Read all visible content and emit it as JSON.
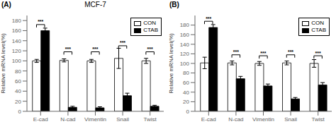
{
  "chart_data": [
    {
      "type": "bar",
      "title": "MCF-7",
      "ylabel": "Relative mRNA level(%)",
      "categories": [
        "E-cad",
        "N-cad",
        "Vimentin",
        "Snail",
        "Twist"
      ],
      "series": [
        {
          "name": "CON",
          "color": "white",
          "values": [
            100,
            101,
            100,
            105,
            100
          ],
          "errors": [
            3,
            3,
            3,
            20,
            5
          ]
        },
        {
          "name": "CTAB",
          "color": "black",
          "values": [
            160,
            8,
            7,
            31,
            10
          ],
          "errors": [
            5,
            2,
            2,
            5,
            2
          ]
        }
      ],
      "ylim": [
        0,
        190
      ],
      "yticks": [
        0,
        20,
        40,
        60,
        80,
        100,
        120,
        140,
        160,
        180
      ],
      "legend": "upper right",
      "annotations": [
        {
          "text": "(A)",
          "position": "top left"
        },
        {
          "text": "***",
          "category": "E-cad",
          "y": 172
        },
        {
          "text": "***",
          "category": "N-cad",
          "y": 118
        },
        {
          "text": "***",
          "category": "Vimentin",
          "y": 118
        },
        {
          "text": "***",
          "category": "Snail",
          "y": 130
        },
        {
          "text": "***",
          "category": "Twist",
          "y": 118
        }
      ]
    },
    {
      "type": "bar",
      "ylabel": "Relative mRNA level(%)",
      "categories": [
        "E-cad",
        "N-cad",
        "Vimentin",
        "Snail",
        "Twist"
      ],
      "series": [
        {
          "name": "CON",
          "color": "white",
          "values": [
            101,
            101,
            100,
            101,
            100
          ],
          "errors": [
            12,
            4,
            4,
            4,
            8
          ]
        },
        {
          "name": "CTAB",
          "color": "black",
          "values": [
            175,
            68,
            53,
            26,
            55
          ],
          "errors": [
            6,
            5,
            4,
            3,
            5
          ]
        }
      ],
      "ylim": [
        0,
        200
      ],
      "yticks": [
        0,
        20,
        40,
        60,
        80,
        100,
        120,
        140,
        160,
        180
      ],
      "legend": "upper right",
      "annotations": [
        {
          "text": "(B)",
          "position": "top left"
        },
        {
          "text": "***",
          "category": "E-cad",
          "y": 188
        },
        {
          "text": "***",
          "category": "N-cad",
          "y": 118
        },
        {
          "text": "***",
          "category": "Vimentin",
          "y": 116
        },
        {
          "text": "***",
          "category": "Snail",
          "y": 118
        },
        {
          "text": "***",
          "category": "Twist",
          "y": 116
        }
      ]
    }
  ]
}
